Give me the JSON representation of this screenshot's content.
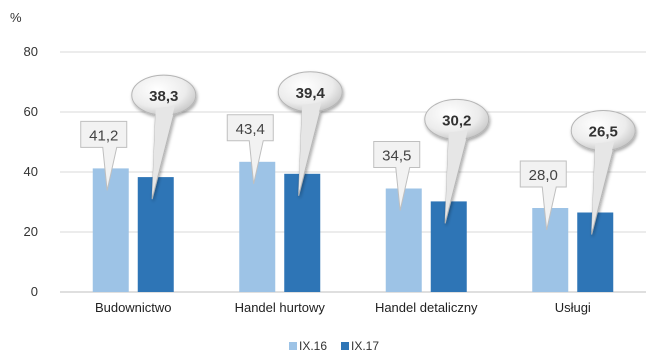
{
  "chart_data": {
    "type": "bar",
    "ylabel": "%",
    "ylim": [
      0,
      80
    ],
    "yticks": [
      "0",
      "20",
      "40",
      "60",
      "80"
    ],
    "categories": [
      "Budownictwo",
      "Handel hurtowy",
      "Handel detaliczny",
      "Usługi"
    ],
    "series": [
      {
        "name": "IX.16",
        "values": [
          41.2,
          43.4,
          34.5,
          28.0
        ],
        "labels": [
          "41,2",
          "43,4",
          "34,5",
          "28,0"
        ],
        "color": "#9dc3e6"
      },
      {
        "name": "IX.17",
        "values": [
          38.3,
          39.4,
          30.2,
          26.5
        ],
        "labels": [
          "38,3",
          "39,4",
          "30,2",
          "26,5"
        ],
        "color": "#2e75b6"
      }
    ],
    "grid": true,
    "legend": "bottom"
  }
}
